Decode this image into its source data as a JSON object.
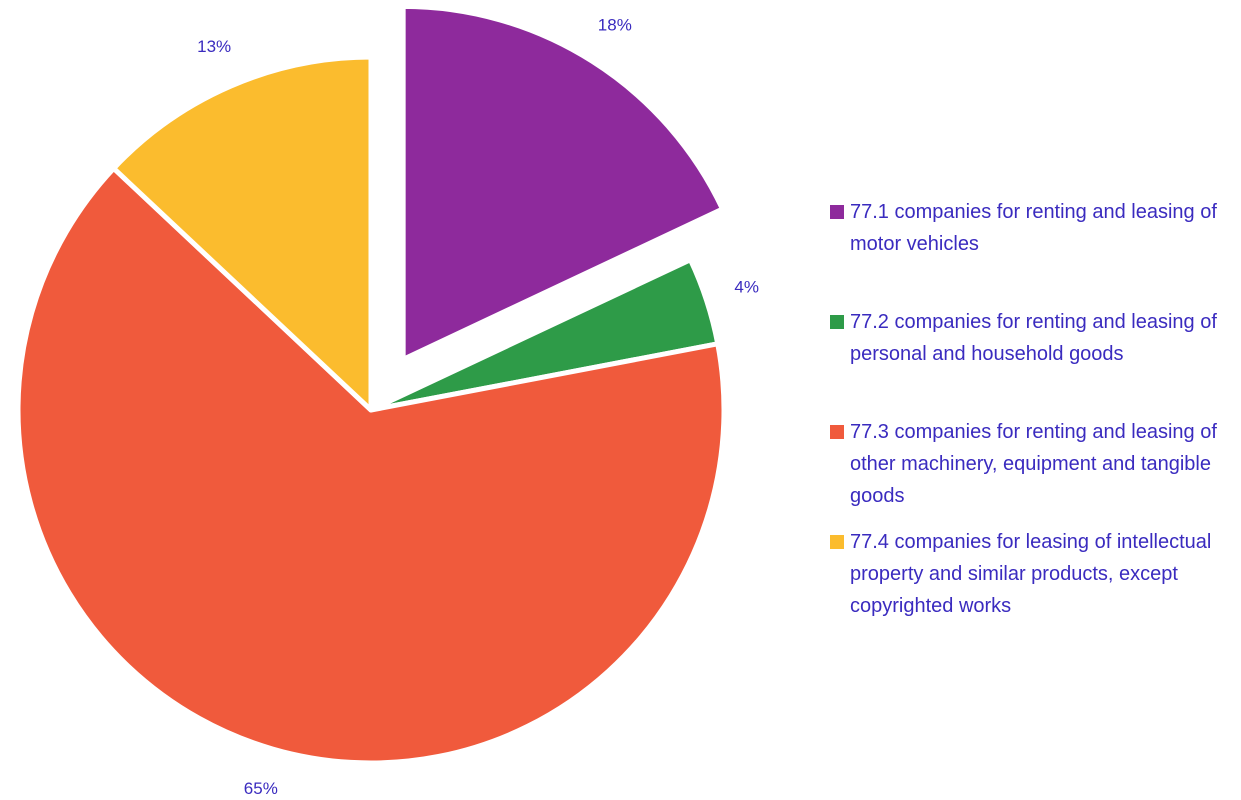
{
  "chart_data": {
    "type": "pie",
    "categories": [
      "77.1 companies for renting and leasing of motor vehicles",
      "77.2 companies for renting and leasing of personal and household goods",
      "77.3 companies for renting and leasing of other machinery, equipment and tangible goods",
      "77.4 companies for leasing of intellectual property and similar products, except copyrighted works"
    ],
    "values": [
      18,
      4,
      65,
      13
    ],
    "value_labels": [
      "18%",
      "4%",
      "65%",
      "13%"
    ],
    "colors": [
      "#8e2a9c",
      "#2e9b48",
      "#f05a3c",
      "#fbbc2e"
    ],
    "legend": "right"
  }
}
